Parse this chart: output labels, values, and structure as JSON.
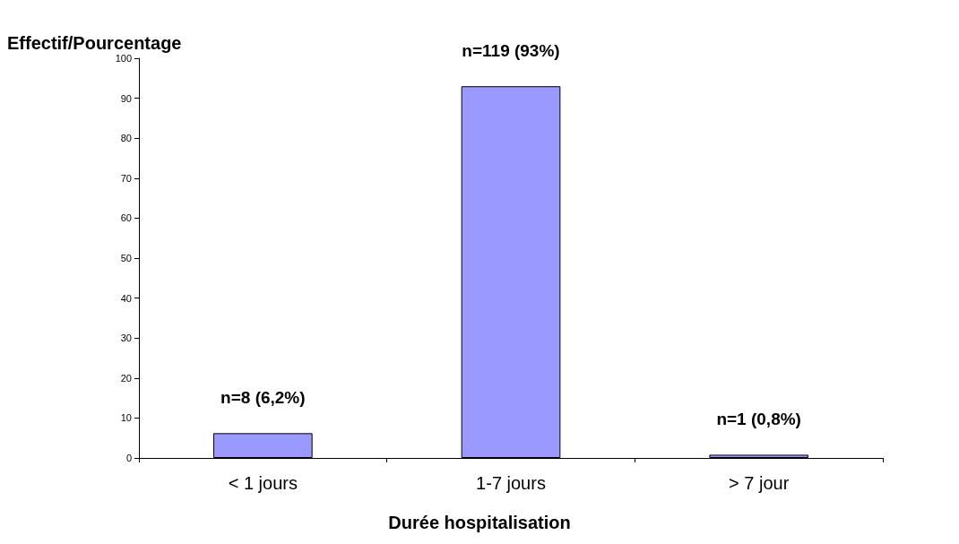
{
  "chart_data": {
    "type": "bar",
    "xlabel": "Durée hospitalisation",
    "ylabel": "Effectif/Pourcentage",
    "categories": [
      "< 1 jours",
      "1-7 jours",
      "> 7 jour"
    ],
    "values": [
      6.2,
      93,
      0.8
    ],
    "value_labels": [
      "n=8 (6,2%)",
      "n=119 (93%)",
      "n=1 (0,8%)"
    ],
    "color": "#9999ff",
    "ylim": [
      0,
      100
    ],
    "yticks": [
      0,
      10,
      20,
      30,
      40,
      50,
      60,
      70,
      80,
      90,
      100
    ]
  }
}
